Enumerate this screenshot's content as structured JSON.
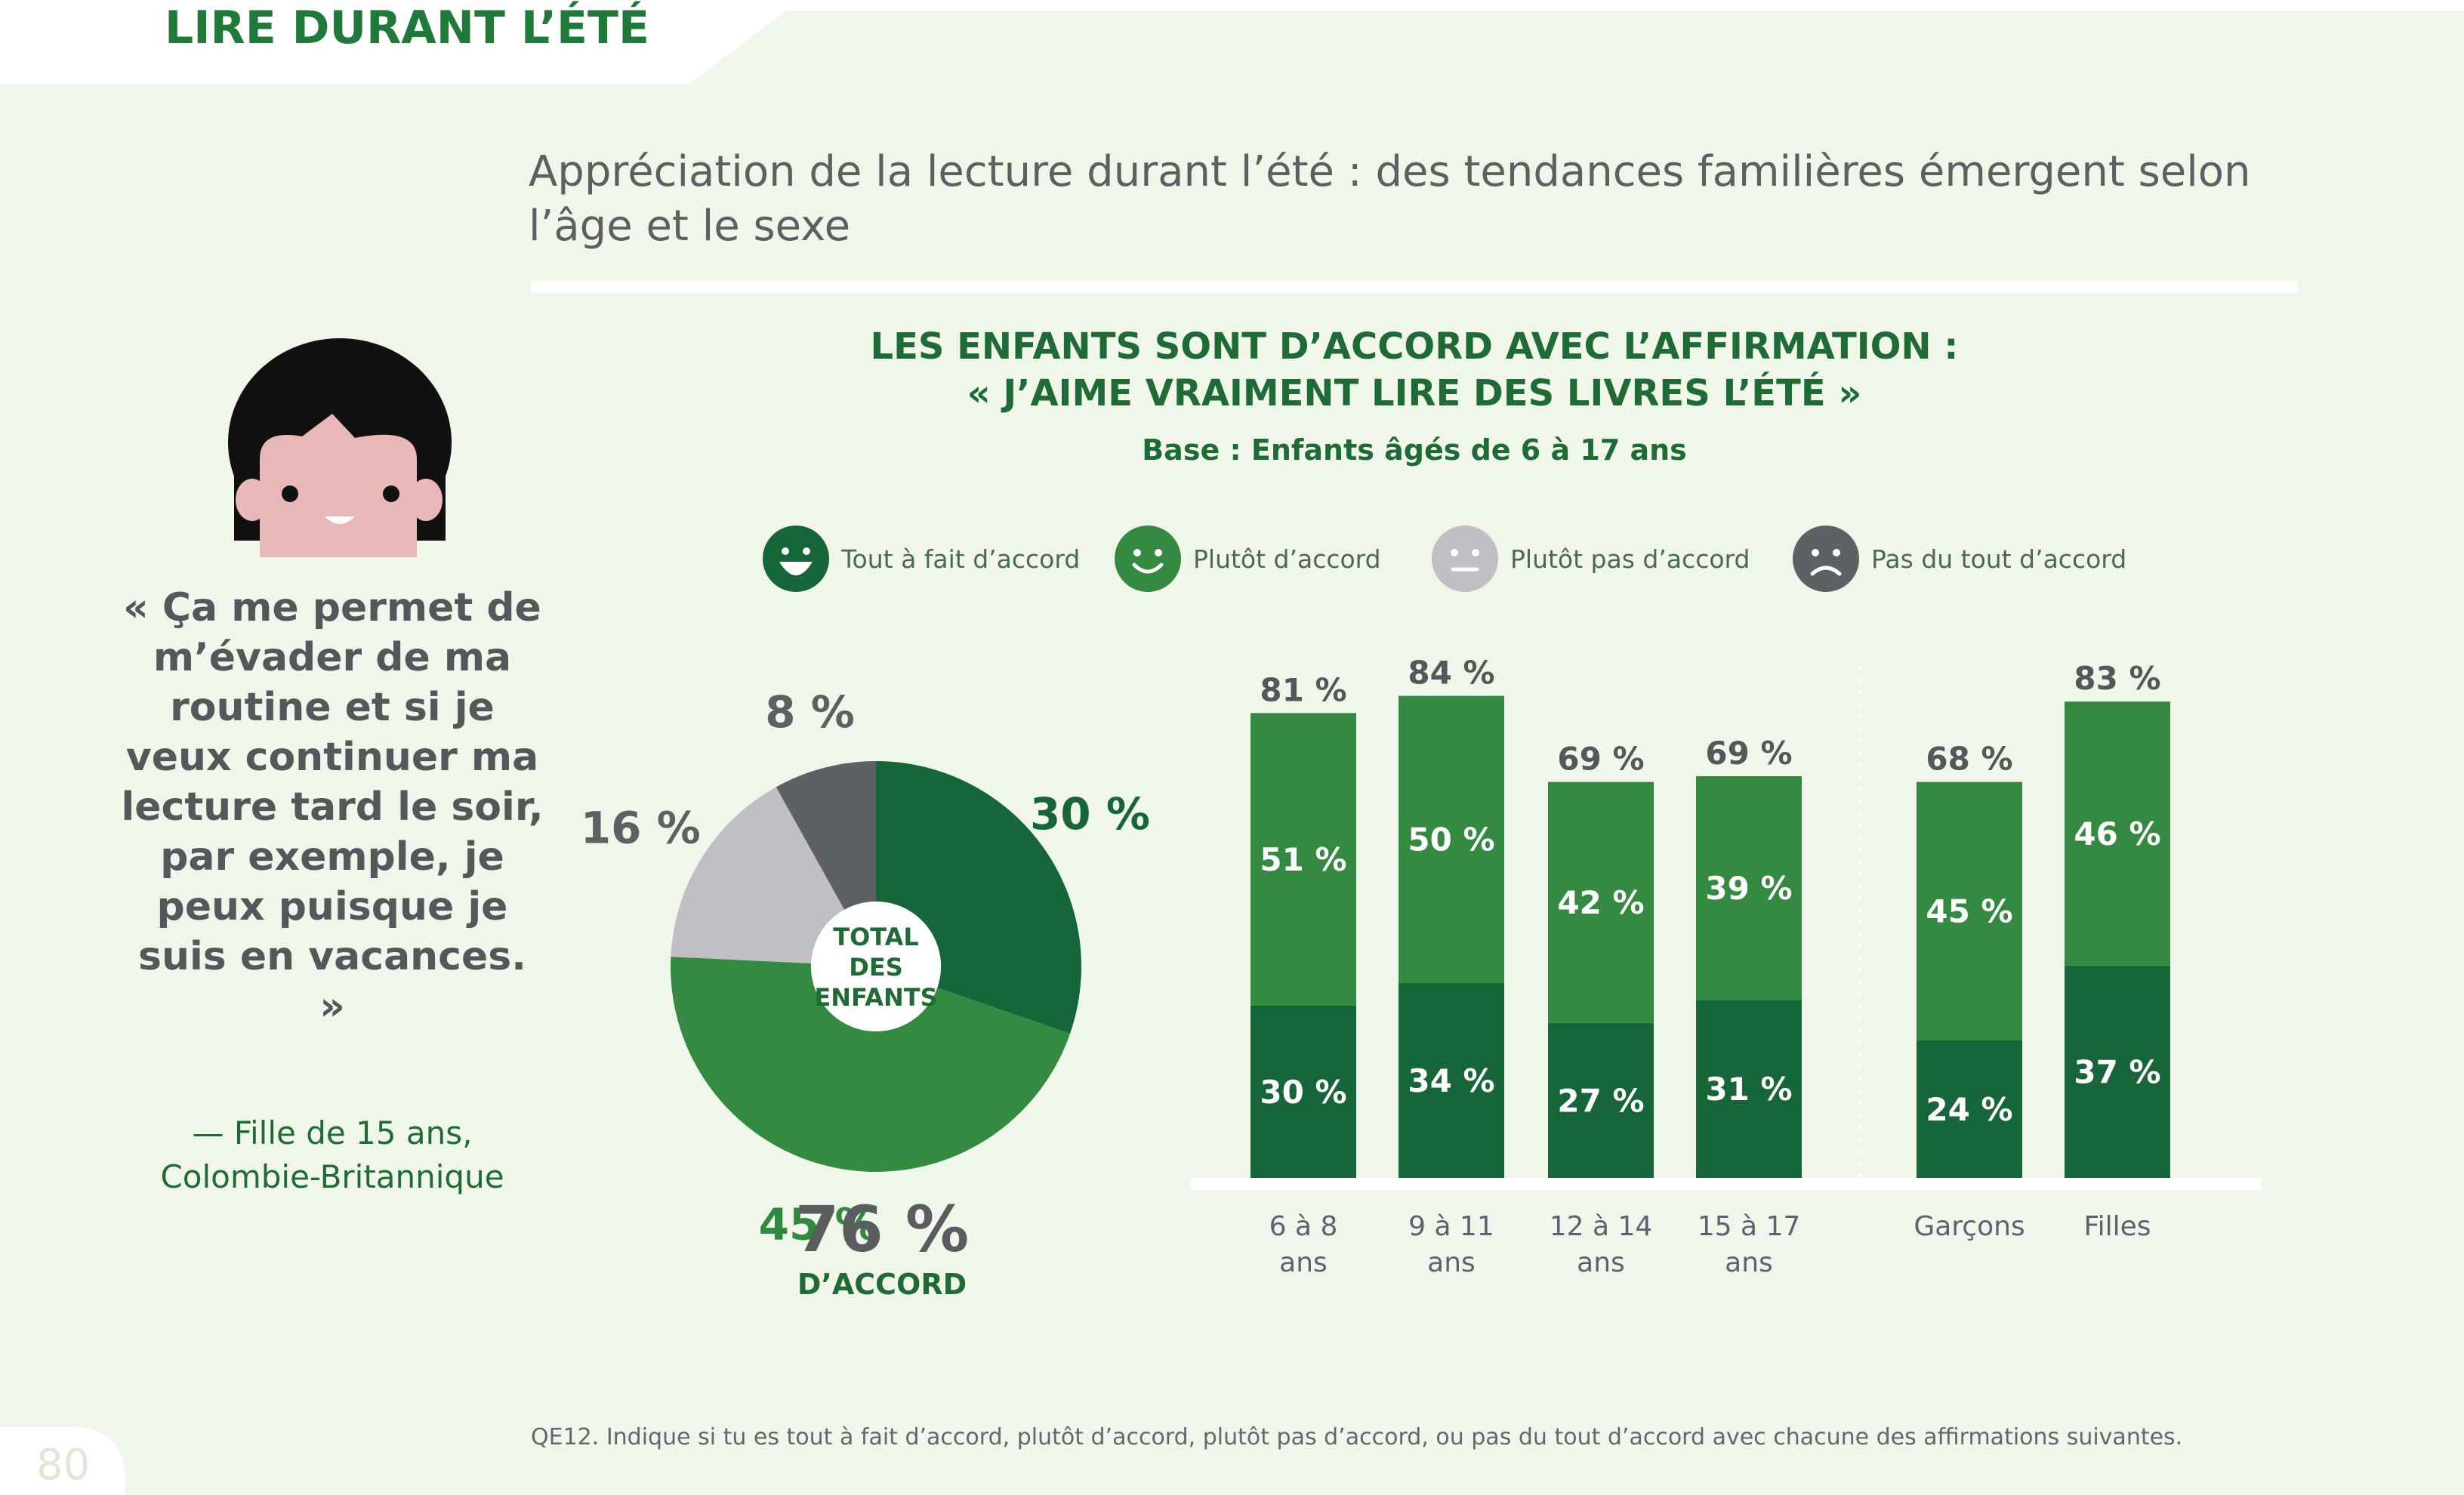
{
  "section_title": "LIRE DURANT L’ÉTÉ",
  "headline": "Appréciation de la lecture durant l’été : des tendances familières émergent selon l’âge et le sexe",
  "quote": {
    "text": "« Ça me permet de m’évader de ma routine et si je veux continuer ma lecture tard le soir, par exemple, je peux puisque je suis en vacances. »",
    "attribution_line1": "— Fille de 15 ans,",
    "attribution_line2": "Colombie-Britannique"
  },
  "footnote": "QE12. Indique si tu es tout à fait d’accord, plutôt d’accord, plutôt pas d’accord, ou pas du tout d’accord avec chacune des affirmations suivantes.",
  "page_number": "80",
  "colors": {
    "tout_a_fait": "#17663a",
    "plutot": "#358a42",
    "plutot_pas": "#c1bfc3",
    "pas_du_tout": "#5e6163",
    "title_green": "#1f6b35",
    "background": "#f1f6ea"
  },
  "chart_data": [
    {
      "type": "pie",
      "title_line1": "LES ENFANTS SONT D’ACCORD AVEC L’AFFIRMATION :",
      "title_line2": "« J’AIME VRAIMENT LIRE DES LIVRES L’ÉTÉ »",
      "subtitle": "Base : Enfants âgés de 6 à 17 ans",
      "legend": [
        {
          "label": "Tout à fait d’accord",
          "icon": "big-smile-icon",
          "color": "#17663a"
        },
        {
          "label": "Plutôt d’accord",
          "icon": "smile-icon",
          "color": "#358a42"
        },
        {
          "label": "Plutôt pas d’accord",
          "icon": "neutral-face-icon",
          "color": "#c1bfc3"
        },
        {
          "label": "Pas du tout d’accord",
          "icon": "sad-face-icon",
          "color": "#5e6163"
        }
      ],
      "center_label_lines": [
        "TOTAL",
        "DES",
        "ENFANTS"
      ],
      "slices": [
        {
          "category": "Tout à fait d’accord",
          "value": 30,
          "label": "30 %"
        },
        {
          "category": "Plutôt d’accord",
          "value": 45,
          "label": "45 %"
        },
        {
          "category": "Plutôt pas d’accord",
          "value": 16,
          "label": "16 %"
        },
        {
          "category": "Pas du tout d’accord",
          "value": 8,
          "label": "8 %"
        }
      ],
      "total_agree": "76 %",
      "total_agree_label": "D’ACCORD"
    },
    {
      "type": "bar",
      "stacked": true,
      "categories": [
        [
          "6 à 8",
          "ans"
        ],
        [
          "9 à 11",
          "ans"
        ],
        [
          "12 à 14",
          "ans"
        ],
        [
          "15 à 17",
          "ans"
        ],
        [
          "Garçons"
        ],
        [
          "Filles"
        ]
      ],
      "groups": [
        {
          "name": "age",
          "indices": [
            0,
            1,
            2,
            3
          ]
        },
        {
          "name": "sexe",
          "indices": [
            4,
            5
          ]
        }
      ],
      "series": [
        {
          "name": "Tout à fait d’accord",
          "values": [
            30,
            34,
            27,
            31,
            24,
            37
          ],
          "labels": [
            "30 %",
            "34 %",
            "27 %",
            "31 %",
            "24 %",
            "37 %"
          ]
        },
        {
          "name": "Plutôt d’accord",
          "values": [
            51,
            50,
            42,
            39,
            45,
            46
          ],
          "labels": [
            "51 %",
            "50 %",
            "42 %",
            "39 %",
            "45 %",
            "46 %"
          ]
        }
      ],
      "totals": [
        81,
        84,
        69,
        69,
        68,
        83
      ],
      "total_labels": [
        "81 %",
        "84 %",
        "69 %",
        "69 %",
        "68 %",
        "83 %"
      ],
      "ylim": [
        0,
        100
      ]
    }
  ]
}
